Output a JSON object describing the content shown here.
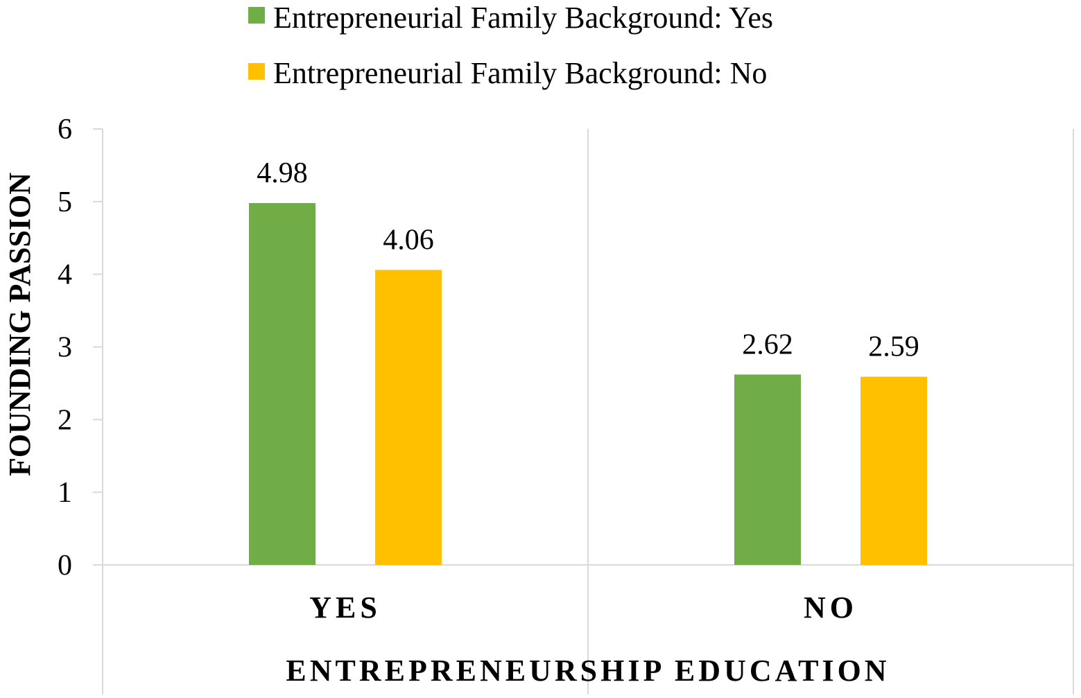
{
  "chart_data": {
    "type": "bar",
    "title": "",
    "xlabel": "ENTREPRENEURSHIP EDUCATION",
    "ylabel": "FOUNDING PASSION",
    "categories": [
      "YES",
      "NO"
    ],
    "series": [
      {
        "name": "Entrepreneurial Family Background: Yes",
        "color": "#70AD47",
        "values": [
          4.98,
          2.62
        ]
      },
      {
        "name": "Entrepreneurial Family Background: No",
        "color": "#FFC000",
        "values": [
          4.06,
          2.59
        ]
      }
    ],
    "ylim": [
      0,
      6
    ],
    "yticks": [
      "0",
      "1",
      "2",
      "3",
      "4",
      "5",
      "6"
    ],
    "data_labels": [
      [
        "4.98",
        "2.62"
      ],
      [
        "4.06",
        "2.59"
      ]
    ],
    "grid": "vertical category dividers",
    "legend": "top-center"
  }
}
